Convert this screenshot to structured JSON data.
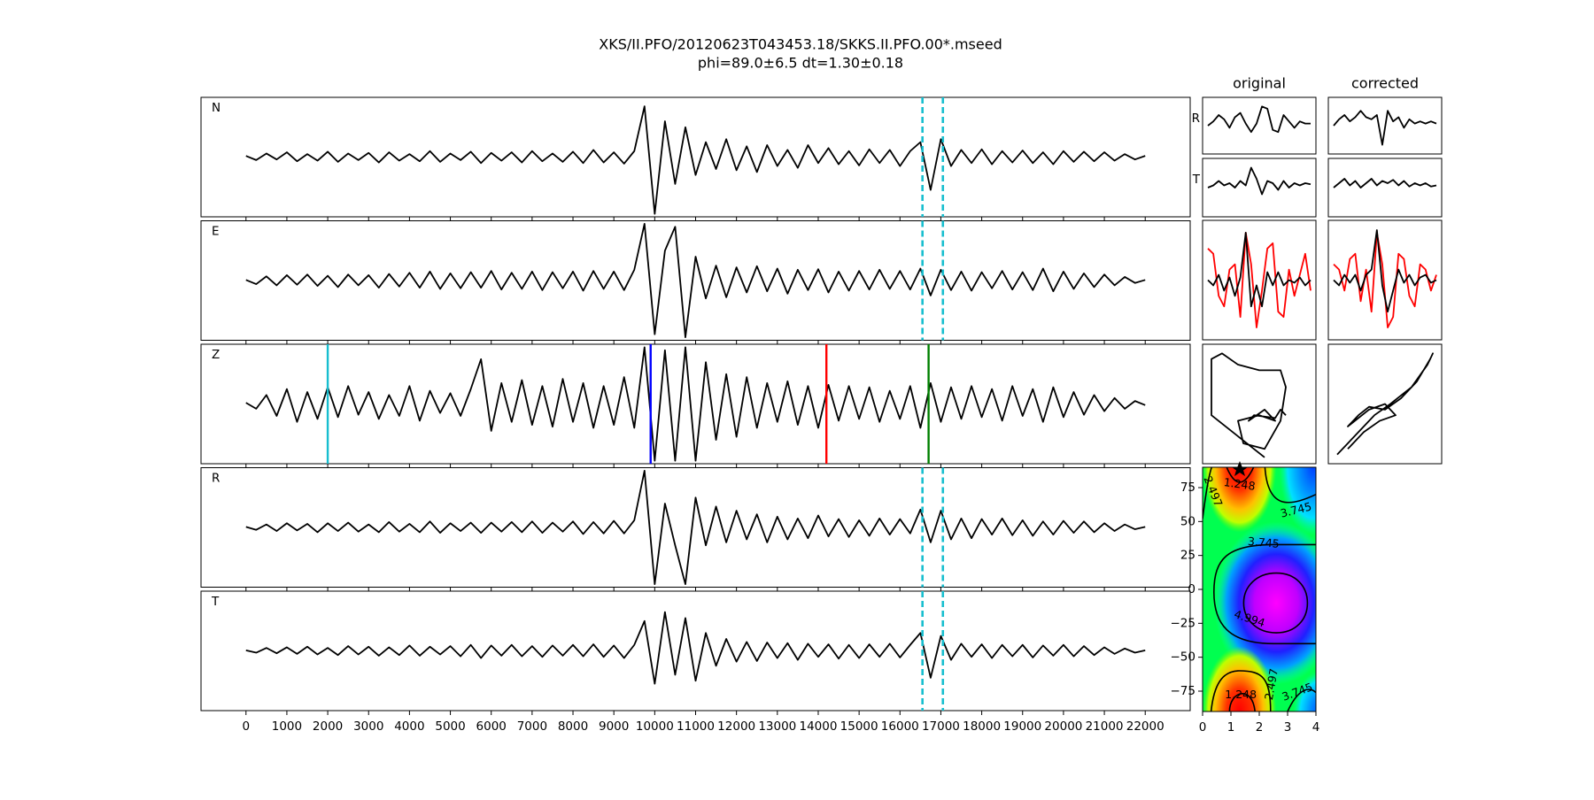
{
  "figure": {
    "title": "XKS/II.PFO/20120623T043453.18/SKKS.II.PFO.00*.mseed",
    "subtitle": "phi=89.0±6.5 dt=1.30±0.18"
  },
  "chart_data": [
    {
      "type": "waveforms",
      "xlim": [
        -1100,
        23100
      ],
      "xticks": [
        0,
        1000,
        2000,
        3000,
        4000,
        5000,
        6000,
        7000,
        8000,
        9000,
        10000,
        11000,
        12000,
        13000,
        14000,
        15000,
        16000,
        17000,
        18000,
        19000,
        20000,
        21000,
        22000
      ],
      "ylim": [
        -1,
        1
      ],
      "x": [
        0,
        250,
        500,
        750,
        1000,
        1250,
        1500,
        1750,
        2000,
        2250,
        2500,
        2750,
        3000,
        3250,
        3500,
        3750,
        4000,
        4250,
        4500,
        4750,
        5000,
        5250,
        5500,
        5750,
        6000,
        6250,
        6500,
        6750,
        7000,
        7250,
        7500,
        7750,
        8000,
        8250,
        8500,
        8750,
        9000,
        9250,
        9500,
        9750,
        10000,
        10250,
        10500,
        10750,
        11000,
        11250,
        11500,
        11750,
        12000,
        12250,
        12500,
        12750,
        13000,
        13250,
        13500,
        13750,
        14000,
        14250,
        14500,
        14750,
        15000,
        15250,
        15500,
        15750,
        16000,
        16250,
        16500,
        16750,
        17000,
        17250,
        17500,
        17750,
        18000,
        18250,
        18500,
        18750,
        19000,
        19250,
        19500,
        19750,
        20000,
        20250,
        20500,
        20750,
        21000,
        21250,
        21500,
        21750,
        22000
      ],
      "window": {
        "values": [
          16550,
          17050
        ],
        "color": "#17becf"
      },
      "series": [
        {
          "name": "N",
          "color": "#000000",
          "window": true,
          "values": [
            0.02,
            -0.05,
            0.06,
            -0.04,
            0.08,
            -0.07,
            0.05,
            -0.06,
            0.09,
            -0.08,
            0.06,
            -0.05,
            0.07,
            -0.09,
            0.08,
            -0.06,
            0.05,
            -0.07,
            0.1,
            -0.08,
            0.06,
            -0.05,
            0.09,
            -0.1,
            0.07,
            -0.06,
            0.08,
            -0.09,
            0.1,
            -0.07,
            0.06,
            -0.08,
            0.09,
            -0.1,
            0.12,
            -0.09,
            0.08,
            -0.11,
            0.1,
            0.85,
            -0.95,
            0.6,
            -0.45,
            0.5,
            -0.3,
            0.25,
            -0.2,
            0.3,
            -0.22,
            0.18,
            -0.25,
            0.2,
            -0.15,
            0.12,
            -0.18,
            0.2,
            -0.1,
            0.15,
            -0.12,
            0.1,
            -0.14,
            0.13,
            -0.1,
            0.12,
            -0.15,
            0.1,
            0.25,
            -0.55,
            0.3,
            -0.15,
            0.12,
            -0.1,
            0.13,
            -0.12,
            0.1,
            -0.09,
            0.11,
            -0.1,
            0.08,
            -0.12,
            0.1,
            -0.08,
            0.09,
            -0.07,
            0.08,
            -0.06,
            0.05,
            -0.04,
            0.02
          ]
        },
        {
          "name": "E",
          "color": "#000000",
          "window": true,
          "values": [
            0.01,
            -0.06,
            0.07,
            -0.08,
            0.09,
            -0.07,
            0.1,
            -0.09,
            0.08,
            -0.11,
            0.1,
            -0.08,
            0.09,
            -0.12,
            0.11,
            -0.1,
            0.13,
            -0.12,
            0.15,
            -0.14,
            0.12,
            -0.13,
            0.14,
            -0.12,
            0.16,
            -0.15,
            0.13,
            -0.14,
            0.15,
            -0.16,
            0.14,
            -0.13,
            0.15,
            -0.17,
            0.16,
            -0.14,
            0.15,
            -0.16,
            0.18,
            0.95,
            -0.9,
            0.5,
            0.9,
            -0.95,
            0.4,
            -0.3,
            0.25,
            -0.28,
            0.22,
            -0.2,
            0.24,
            -0.18,
            0.2,
            -0.22,
            0.18,
            -0.16,
            0.19,
            -0.2,
            0.15,
            -0.17,
            0.16,
            -0.15,
            0.18,
            -0.14,
            0.16,
            -0.15,
            0.2,
            -0.25,
            0.18,
            -0.16,
            0.15,
            -0.17,
            0.14,
            -0.13,
            0.16,
            -0.15,
            0.14,
            -0.16,
            0.2,
            -0.18,
            0.15,
            -0.14,
            0.12,
            -0.11,
            0.1,
            -0.08,
            0.06,
            -0.04,
            0.01
          ]
        },
        {
          "name": "Z",
          "color": "#000000",
          "window": false,
          "picks": [
            {
              "value": 2000,
              "color": "#17becf"
            },
            {
              "value": 9900,
              "color": "#0000ff"
            },
            {
              "value": 14200,
              "color": "#ff0000"
            },
            {
              "value": 16700,
              "color": "#008000"
            }
          ],
          "values": [
            0.02,
            -0.08,
            0.15,
            -0.2,
            0.25,
            -0.3,
            0.2,
            -0.25,
            0.28,
            -0.22,
            0.3,
            -0.18,
            0.2,
            -0.25,
            0.15,
            -0.2,
            0.3,
            -0.28,
            0.22,
            -0.15,
            0.18,
            -0.2,
            0.25,
            0.75,
            -0.45,
            0.35,
            -0.3,
            0.4,
            -0.35,
            0.3,
            -0.38,
            0.42,
            -0.3,
            0.35,
            -0.4,
            0.3,
            -0.35,
            0.45,
            -0.4,
            0.95,
            -0.95,
            0.9,
            -0.95,
            0.95,
            -0.95,
            0.7,
            -0.6,
            0.5,
            -0.55,
            0.45,
            -0.4,
            0.35,
            -0.3,
            0.38,
            -0.35,
            0.3,
            -0.4,
            0.32,
            -0.28,
            0.3,
            -0.25,
            0.28,
            -0.3,
            0.22,
            -0.25,
            0.3,
            -0.4,
            0.35,
            -0.3,
            0.28,
            -0.25,
            0.3,
            -0.22,
            0.25,
            -0.28,
            0.3,
            -0.2,
            0.25,
            -0.3,
            0.28,
            -0.22,
            0.2,
            -0.18,
            0.15,
            -0.12,
            0.1,
            -0.08,
            0.05,
            -0.02
          ]
        },
        {
          "name": "R",
          "color": "#000000",
          "window": true,
          "values": [
            0.01,
            -0.04,
            0.05,
            -0.06,
            0.07,
            -0.05,
            0.06,
            -0.08,
            0.07,
            -0.06,
            0.08,
            -0.07,
            0.05,
            -0.08,
            0.09,
            -0.07,
            0.06,
            -0.08,
            0.1,
            -0.09,
            0.07,
            -0.06,
            0.08,
            -0.09,
            0.08,
            -0.07,
            0.09,
            -0.08,
            0.1,
            -0.09,
            0.08,
            -0.07,
            0.1,
            -0.11,
            0.09,
            -0.1,
            0.11,
            -0.1,
            0.12,
            0.95,
            -0.95,
            0.4,
            -0.3,
            -0.95,
            0.5,
            -0.3,
            0.35,
            -0.25,
            0.28,
            -0.2,
            0.22,
            -0.25,
            0.18,
            -0.2,
            0.15,
            -0.18,
            0.2,
            -0.15,
            0.14,
            -0.16,
            0.12,
            -0.14,
            0.15,
            -0.12,
            0.14,
            -0.1,
            0.3,
            -0.25,
            0.28,
            -0.2,
            0.15,
            -0.18,
            0.14,
            -0.12,
            0.15,
            -0.13,
            0.12,
            -0.14,
            0.1,
            -0.12,
            0.11,
            -0.09,
            0.1,
            -0.08,
            0.07,
            -0.06,
            0.05,
            -0.03,
            0.01
          ]
        },
        {
          "name": "T",
          "color": "#000000",
          "window": true,
          "values": [
            0.01,
            -0.03,
            0.05,
            -0.04,
            0.06,
            -0.05,
            0.07,
            -0.06,
            0.05,
            -0.07,
            0.08,
            -0.06,
            0.07,
            -0.08,
            0.06,
            -0.07,
            0.09,
            -0.08,
            0.07,
            -0.06,
            0.08,
            -0.09,
            0.1,
            -0.12,
            0.09,
            -0.08,
            0.1,
            -0.09,
            0.08,
            -0.1,
            0.09,
            -0.08,
            0.1,
            -0.09,
            0.11,
            -0.1,
            0.09,
            -0.12,
            0.1,
            0.5,
            -0.55,
            0.65,
            -0.4,
            0.55,
            -0.5,
            0.3,
            -0.25,
            0.2,
            -0.18,
            0.15,
            -0.17,
            0.14,
            -0.12,
            0.13,
            -0.15,
            0.12,
            -0.1,
            0.11,
            -0.13,
            0.1,
            -0.12,
            0.11,
            -0.1,
            0.12,
            -0.11,
            0.1,
            0.3,
            -0.45,
            0.25,
            -0.15,
            0.12,
            -0.1,
            0.11,
            -0.12,
            0.1,
            -0.09,
            0.1,
            -0.11,
            0.09,
            -0.08,
            0.1,
            -0.09,
            0.08,
            -0.07,
            0.06,
            -0.05,
            0.04,
            -0.03,
            0.01
          ]
        }
      ]
    },
    {
      "type": "small-traces",
      "title": "original",
      "ylim": [
        -1,
        1
      ],
      "series": [
        {
          "name": "R",
          "color": "#000000",
          "values": [
            0,
            0.2,
            0.5,
            0.3,
            -0.1,
            0.4,
            0.6,
            0.1,
            -0.3,
            0.1,
            0.9,
            0.8,
            -0.2,
            -0.3,
            0.5,
            0.2,
            -0.1,
            0.2,
            0.1,
            0.1
          ]
        },
        {
          "name": "T",
          "color": "#000000",
          "values": [
            0,
            0.1,
            0.3,
            0.1,
            0.2,
            0,
            0.3,
            0.1,
            0.9,
            0.4,
            -0.3,
            0.3,
            0.2,
            -0.1,
            0.3,
            0,
            0.2,
            0.1,
            0.2,
            0.15
          ]
        }
      ],
      "components": [
        {
          "color": "#ff0000",
          "values": [
            0.6,
            0.5,
            -0.3,
            -0.5,
            0.2,
            0.3,
            -0.7,
            0.9,
            0.3,
            -0.9,
            -0.2,
            0.6,
            0.7,
            -0.6,
            -0.7,
            0.2,
            -0.3,
            0.1,
            0.5,
            -0.2
          ]
        },
        {
          "color": "#000000",
          "values": [
            0,
            -0.1,
            0.1,
            -0.2,
            0.05,
            -0.3,
            0.05,
            0.9,
            -0.5,
            -0.1,
            -0.5,
            0.15,
            -0.1,
            0.15,
            -0.1,
            0,
            -0.05,
            0.05,
            -0.1,
            0
          ]
        }
      ],
      "particle_motion": {
        "color": "#000000",
        "x": [
          0.1,
          -0.9,
          -0.9,
          -0.7,
          -0.4,
          0,
          0.4,
          0.5,
          0.4,
          0.1,
          -0.3,
          -0.4,
          0,
          0.3,
          0.1,
          -0.2,
          -0.1,
          0.3,
          0.4,
          0.5
        ],
        "y": [
          -0.95,
          -0.2,
          0.8,
          0.9,
          0.7,
          0.6,
          0.6,
          0.3,
          -0.3,
          -0.8,
          -0.7,
          -0.3,
          -0.2,
          -0.3,
          -0.1,
          -0.3,
          -0.2,
          -0.25,
          -0.1,
          -0.2
        ]
      }
    },
    {
      "type": "small-traces",
      "title": "corrected",
      "ylim": [
        -1,
        1
      ],
      "series": [
        {
          "color": "#000000",
          "values": [
            0,
            0.3,
            0.5,
            0.2,
            0.4,
            0.7,
            0.4,
            0.3,
            0.5,
            -0.9,
            0.7,
            0.2,
            0.4,
            -0.1,
            0.3,
            0.1,
            0.2,
            0.1,
            0.2,
            0.1
          ]
        },
        {
          "color": "#000000",
          "values": [
            0,
            0.2,
            0.4,
            0.1,
            0.3,
            0,
            0.2,
            0.4,
            0.1,
            0.3,
            0.2,
            0.35,
            0.1,
            0.3,
            0.05,
            0.2,
            0.1,
            0.2,
            0.05,
            0.1
          ]
        }
      ],
      "components": [
        {
          "color": "#ff0000",
          "values": [
            0.3,
            0.2,
            -0.2,
            0.4,
            0.5,
            -0.4,
            0.2,
            -0.6,
            0.9,
            0.3,
            -0.9,
            -0.7,
            0.5,
            0.4,
            -0.3,
            -0.5,
            0.3,
            0.2,
            -0.2,
            0.1
          ]
        },
        {
          "color": "#000000",
          "values": [
            0,
            -0.1,
            0.1,
            -0.05,
            0.1,
            -0.2,
            0.1,
            0.2,
            0.95,
            -0.1,
            -0.6,
            -0.2,
            0.2,
            -0.05,
            0.1,
            -0.1,
            0.05,
            0.1,
            -0.05,
            0
          ]
        }
      ],
      "particle_motion": {
        "color": "#000000",
        "x": [
          -0.9,
          -0.5,
          -0.2,
          0.1,
          0.5,
          0.8,
          0.9,
          0.85,
          0.6,
          0.3,
          0,
          -0.3,
          -0.5,
          -0.7,
          -0.3,
          0,
          0.2,
          -0.1,
          -0.4,
          -0.7
        ],
        "y": [
          -0.9,
          -0.5,
          -0.2,
          0,
          0.3,
          0.7,
          0.9,
          0.8,
          0.4,
          0.1,
          -0.1,
          -0.05,
          -0.2,
          -0.4,
          -0.1,
          0,
          -0.2,
          -0.3,
          -0.5,
          -0.8
        ]
      }
    },
    {
      "type": "contour",
      "xlim": [
        0,
        4
      ],
      "xticks": [
        0,
        1,
        2,
        3,
        4
      ],
      "ylim": [
        -90,
        90
      ],
      "yticks": [
        {
          "value": -75,
          "label": "−75"
        },
        {
          "value": -50,
          "label": "−50"
        },
        {
          "value": -25,
          "label": "−25"
        },
        0,
        25,
        50,
        75
      ],
      "levels": [
        1.248,
        2.497,
        3.745,
        4.994
      ],
      "color": "#000000"
    }
  ]
}
